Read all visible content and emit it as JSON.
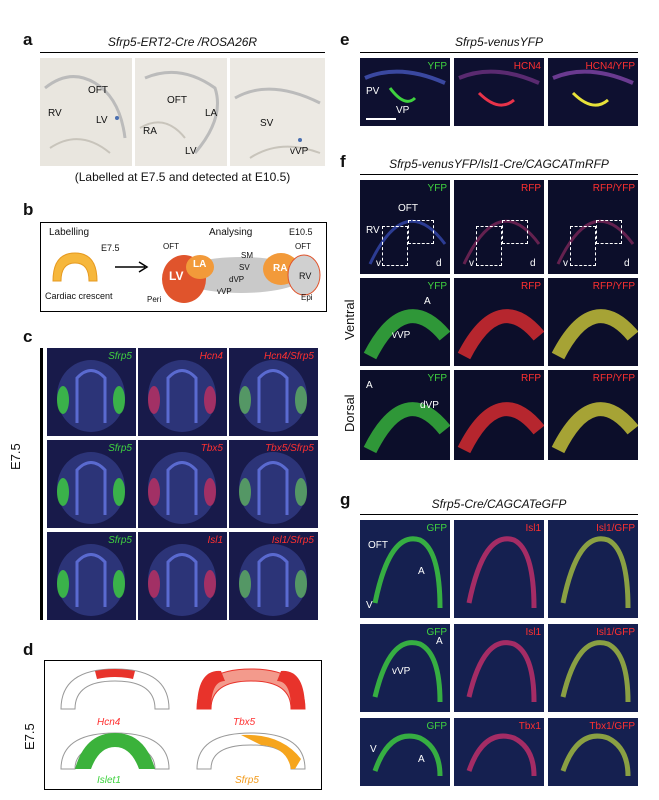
{
  "panels": {
    "a": {
      "letter": "a",
      "title": "Sfrp5-ERT2-Cre /ROSA26R",
      "caption": "(Labelled at E7.5 and detected at E10.5)",
      "labels": [
        "OFT",
        "RV",
        "LV",
        "OFT",
        "LA",
        "RA",
        "LV",
        "SV",
        "vVP"
      ]
    },
    "b": {
      "letter": "b",
      "labelling": "Labelling",
      "stage_left": "E7.5",
      "crescent": "Cardiac crescent",
      "analysing": "Analysing",
      "stage_right": "E10.5",
      "labels": [
        "OFT",
        "LV",
        "LA",
        "SM",
        "SV",
        "dVP",
        "vVP",
        "Peri",
        "RA",
        "OFT",
        "RV",
        "Epi"
      ]
    },
    "c": {
      "letter": "c",
      "side": "E7.5",
      "rows": [
        [
          "Sfrp5",
          "Hcn4",
          "Hcn4/Sfrp5"
        ],
        [
          "Sfrp5",
          "Tbx5",
          "Tbx5/Sfrp5"
        ],
        [
          "Sfrp5",
          "Isl1",
          "Isl1/Sfrp5"
        ]
      ]
    },
    "d": {
      "letter": "d",
      "side": "E7.5",
      "genes": [
        "Hcn4",
        "Tbx5",
        "Islet1",
        "Sfrp5"
      ]
    },
    "e": {
      "letter": "e",
      "title": "Sfrp5-venusYFP",
      "tiles": [
        "YFP",
        "HCN4",
        "HCN4/YFP"
      ],
      "labels": [
        "PV",
        "VP"
      ]
    },
    "f": {
      "letter": "f",
      "title": "Sfrp5-venusYFP/Isl1-Cre/CAGCATmRFP",
      "tiles": [
        "YFP",
        "RFP",
        "RFP/YFP"
      ],
      "top_labels": [
        "OFT",
        "RV",
        "v",
        "d",
        "v",
        "d",
        "v",
        "d"
      ],
      "ventral": "Ventral",
      "ventral_labels": [
        "A",
        "vVP"
      ],
      "dorsal": "Dorsal",
      "dorsal_labels": [
        "A",
        "dVP"
      ]
    },
    "g": {
      "letter": "g",
      "title": "Sfrp5-Cre/CAGCATeGFP",
      "row1": [
        "GFP",
        "Isl1",
        "Isl1/GFP"
      ],
      "row2": [
        "GFP",
        "Isl1",
        "Isl1/GFP"
      ],
      "row3": [
        "GFP",
        "Tbx1",
        "Tbx1/GFP"
      ],
      "row1_labels": [
        "OFT",
        "A",
        "V"
      ],
      "row2_labels": [
        "A",
        "vVP"
      ],
      "row3_labels": [
        "V",
        "A"
      ]
    }
  },
  "colors": {
    "green": "#3fd23f",
    "red": "#ff3030",
    "orange": "#f29a1a",
    "blue_bg": "#0e1030"
  }
}
